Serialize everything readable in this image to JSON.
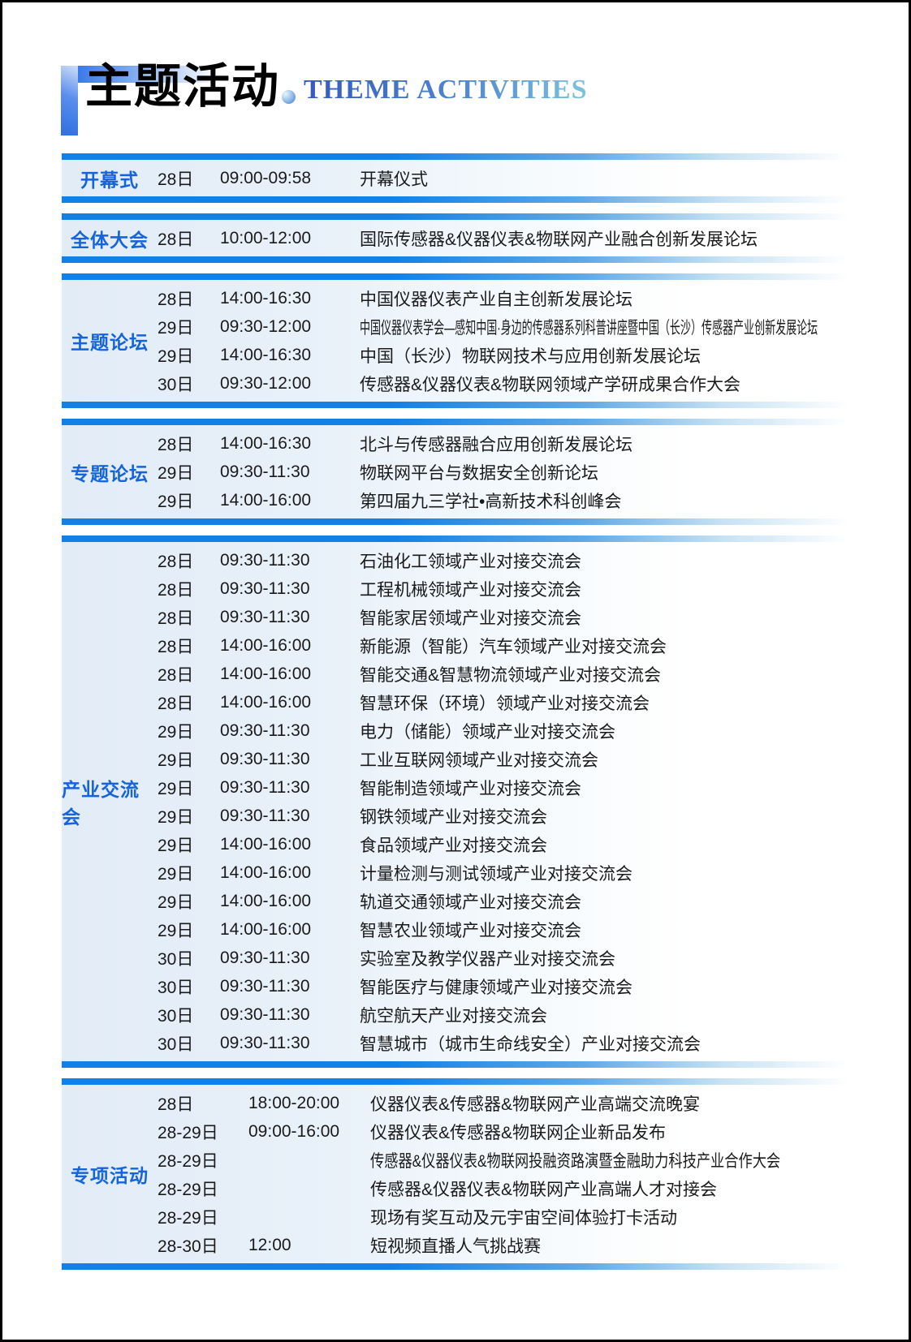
{
  "header": {
    "title": "主题活动",
    "subtitle": "THEME ACTIVITIES"
  },
  "colors": {
    "bar_blue": "#1181e8",
    "label_blue": "#1664d9",
    "subtitle_gradient_from": "#3459bf",
    "subtitle_gradient_to": "#7cc4de",
    "body_tint": "#e2ecf7"
  },
  "sections": [
    {
      "label": "开幕式",
      "rows": [
        {
          "date": "28日",
          "time": "09:00-09:58",
          "event": "开幕仪式"
        }
      ]
    },
    {
      "label": "全体大会",
      "rows": [
        {
          "date": "28日",
          "time": "10:00-12:00",
          "event": "国际传感器&仪器仪表&物联网产业融合创新发展论坛"
        }
      ]
    },
    {
      "label": "主题论坛",
      "rows": [
        {
          "date": "28日",
          "time": "14:00-16:30",
          "event": "中国仪器仪表产业自主创新发展论坛"
        },
        {
          "date": "29日",
          "time": "09:30-12:00",
          "event": "中国仪器仪表学会—感知中国·身边的传感器系列科普讲座暨中国（长沙）传感器产业创新发展论坛",
          "narrow": 0.62
        },
        {
          "date": "29日",
          "time": "14:00-16:30",
          "event": "中国（长沙）物联网技术与应用创新发展论坛"
        },
        {
          "date": "30日",
          "time": "09:30-12:00",
          "event": "传感器&仪器仪表&物联网领域产学研成果合作大会"
        }
      ]
    },
    {
      "label": "专题论坛",
      "rows": [
        {
          "date": "28日",
          "time": "14:00-16:30",
          "event": "北斗与传感器融合应用创新发展论坛"
        },
        {
          "date": "29日",
          "time": "09:30-11:30",
          "event": "物联网平台与数据安全创新论坛"
        },
        {
          "date": "29日",
          "time": "14:00-16:00",
          "event": "第四届九三学社•高新技术科创峰会"
        }
      ]
    },
    {
      "label": "产业交流会",
      "rows": [
        {
          "date": "28日",
          "time": "09:30-11:30",
          "event": "石油化工领域产业对接交流会"
        },
        {
          "date": "28日",
          "time": "09:30-11:30",
          "event": "工程机械领域产业对接交流会"
        },
        {
          "date": "28日",
          "time": "09:30-11:30",
          "event": "智能家居领域产业对接交流会"
        },
        {
          "date": "28日",
          "time": "14:00-16:00",
          "event": "新能源（智能）汽车领域产业对接交流会"
        },
        {
          "date": "28日",
          "time": "14:00-16:00",
          "event": "智能交通&智慧物流领域产业对接交流会"
        },
        {
          "date": "28日",
          "time": "14:00-16:00",
          "event": "智慧环保（环境）领域产业对接交流会"
        },
        {
          "date": "29日",
          "time": "09:30-11:30",
          "event": "电力（储能）领域产业对接交流会"
        },
        {
          "date": "29日",
          "time": "09:30-11:30",
          "event": "工业互联网领域产业对接交流会"
        },
        {
          "date": "29日",
          "time": "09:30-11:30",
          "event": "智能制造领域产业对接交流会"
        },
        {
          "date": "29日",
          "time": "09:30-11:30",
          "event": "钢铁领域产业对接交流会"
        },
        {
          "date": "29日",
          "time": "14:00-16:00",
          "event": "食品领域产业对接交流会"
        },
        {
          "date": "29日",
          "time": "14:00-16:00",
          "event": "计量检测与测试领域产业对接交流会"
        },
        {
          "date": "29日",
          "time": "14:00-16:00",
          "event": "轨道交通领域产业对接交流会"
        },
        {
          "date": "29日",
          "time": "14:00-16:00",
          "event": "智慧农业领域产业对接交流会"
        },
        {
          "date": "30日",
          "time": "09:30-11:30",
          "event": "实验室及教学仪器产业对接交流会"
        },
        {
          "date": "30日",
          "time": "09:30-11:30",
          "event": "智能医疗与健康领域产业对接交流会"
        },
        {
          "date": "30日",
          "time": "09:30-11:30",
          "event": "航空航天产业对接交流会"
        },
        {
          "date": "30日",
          "time": "09:30-11:30",
          "event": "智慧城市（城市生命线安全）产业对接交流会"
        }
      ]
    },
    {
      "label": "专项活动",
      "wide_date": true,
      "rows": [
        {
          "date": "28日",
          "time": "18:00-20:00",
          "event": "仪器仪表&传感器&物联网产业高端交流晚宴"
        },
        {
          "date": "28-29日",
          "time": "09:00-16:00",
          "event": "仪器仪表&传感器&物联网企业新品发布"
        },
        {
          "date": "28-29日",
          "time": "",
          "event": "传感器&仪器仪表&物联网投融资路演暨金融助力科技产业合作大会",
          "narrow": 0.82
        },
        {
          "date": "28-29日",
          "time": "",
          "event": "传感器&仪器仪表&物联网产业高端人才对接会"
        },
        {
          "date": "28-29日",
          "time": "",
          "event": "现场有奖互动及元宇宙空间体验打卡活动"
        },
        {
          "date": "28-30日",
          "time": "12:00",
          "event": "短视频直播人气挑战赛"
        }
      ]
    }
  ]
}
